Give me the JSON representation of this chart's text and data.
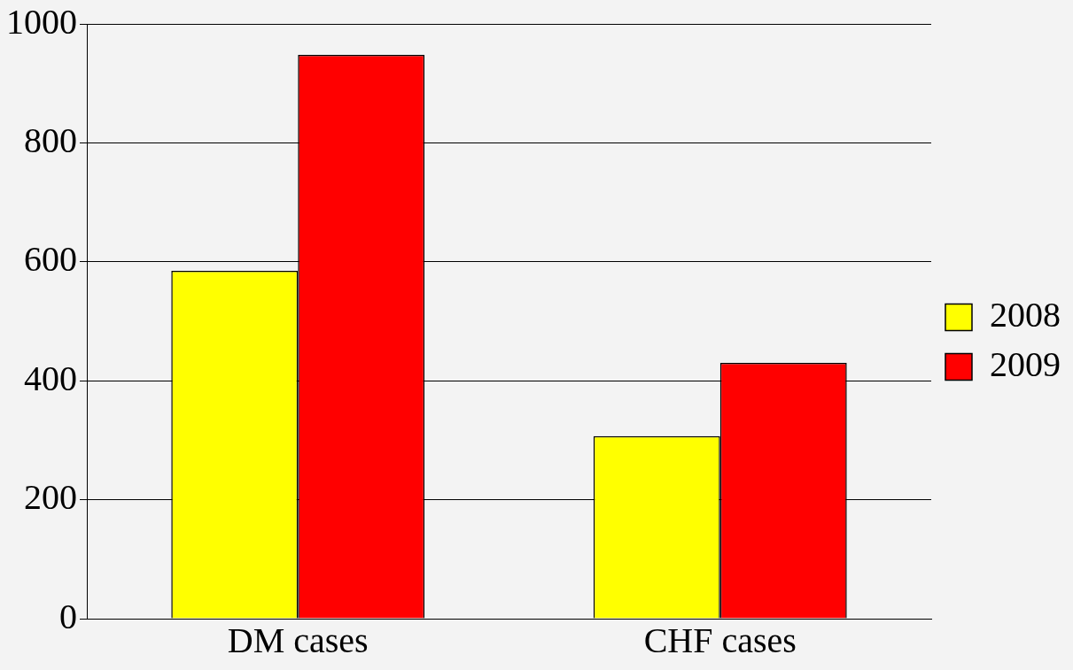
{
  "chart_data": {
    "type": "bar",
    "categories": [
      "DM cases",
      "CHF cases"
    ],
    "series": [
      {
        "name": "2008",
        "color": "#ffff00",
        "values": [
          585,
          307
        ]
      },
      {
        "name": "2009",
        "color": "#ff0000",
        "values": [
          948,
          430
        ]
      }
    ],
    "ylim": [
      0,
      1000
    ],
    "yticks": [
      0,
      200,
      400,
      600,
      800,
      1000
    ],
    "grid": "y",
    "legend": "right"
  }
}
